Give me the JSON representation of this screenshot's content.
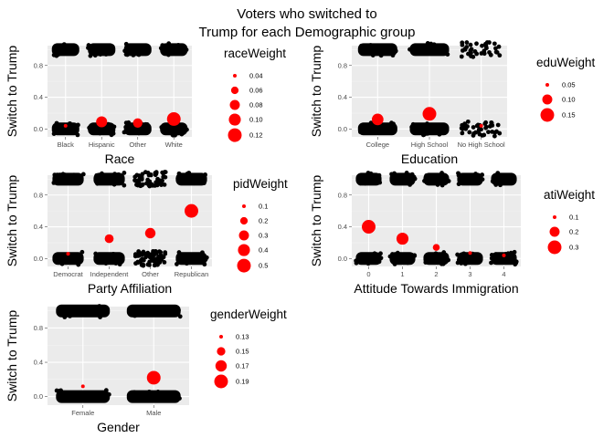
{
  "title_lines": [
    "Voters who switched to",
    "Trump for each Demographic group"
  ],
  "colors": {
    "points": "#000000",
    "weight": "#ff0000",
    "panel": "#ebebeb",
    "grid": "#ffffff"
  },
  "chart_data": [
    {
      "type": "scatter",
      "xlabel": "Race",
      "ylabel": "Switch to Trump",
      "ylim": [
        -0.1,
        1.05
      ],
      "yticks": [
        "0.0",
        "0.4",
        "0.8"
      ],
      "categories": [
        "Black",
        "Hispanic",
        "Other",
        "White"
      ],
      "point_density": [
        "dense",
        "dense",
        "dense",
        "dense"
      ],
      "weights": [
        0.04,
        0.09,
        0.075,
        0.125
      ],
      "legend_title": "raceWeight",
      "legend_values": [
        "0.04",
        "0.06",
        "0.08",
        "0.10",
        "0.12"
      ],
      "size_range": [
        0.04,
        0.12
      ]
    },
    {
      "type": "scatter",
      "xlabel": "Education",
      "ylabel": "Switch to Trump",
      "ylim": [
        -0.1,
        1.05
      ],
      "yticks": [
        "0.0",
        "0.4",
        "0.8"
      ],
      "categories": [
        "College",
        "High School",
        "No High School"
      ],
      "point_density": [
        "dense",
        "dense",
        "sparse"
      ],
      "weights": [
        0.12,
        0.19,
        0.04
      ],
      "legend_title": "eduWeight",
      "legend_values": [
        "0.05",
        "0.10",
        "0.15"
      ],
      "size_range": [
        0.05,
        0.15
      ]
    },
    {
      "type": "scatter",
      "xlabel": "Party Affiliation",
      "ylabel": "Switch to Trump",
      "ylim": [
        -0.1,
        1.05
      ],
      "yticks": [
        "0.0",
        "0.4",
        "0.8"
      ],
      "categories": [
        "Democrat",
        "Independent",
        "Other",
        "Republican"
      ],
      "point_density": [
        "dense",
        "dense",
        "medium",
        "dense"
      ],
      "weights": [
        0.06,
        0.25,
        0.32,
        0.6
      ],
      "legend_title": "pidWeight",
      "legend_values": [
        "0.1",
        "0.2",
        "0.3",
        "0.4",
        "0.5"
      ],
      "size_range": [
        0.1,
        0.5
      ]
    },
    {
      "type": "scatter",
      "xlabel": "Attitude Towards Immigration",
      "ylabel": "Switch to Trump",
      "ylim": [
        -0.1,
        1.05
      ],
      "yticks": [
        "0.0",
        "0.4",
        "0.8"
      ],
      "categories": [
        "0",
        "1",
        "2",
        "3",
        "4"
      ],
      "point_density": [
        "dense",
        "dense",
        "dense",
        "dense",
        "dense"
      ],
      "weights": [
        0.4,
        0.25,
        0.14,
        0.07,
        0.04
      ],
      "legend_title": "atiWeight",
      "legend_values": [
        "0.1",
        "0.2",
        "0.3"
      ],
      "size_range": [
        0.1,
        0.3
      ]
    },
    {
      "type": "scatter",
      "xlabel": "Gender",
      "ylabel": "Switch to Trump",
      "ylim": [
        -0.1,
        1.05
      ],
      "yticks": [
        "0.0",
        "0.4",
        "0.8"
      ],
      "categories": [
        "Female",
        "Male"
      ],
      "point_density": [
        "dense",
        "dense"
      ],
      "weights": [
        0.12,
        0.22
      ],
      "legend_title": "genderWeight",
      "legend_values": [
        "0.13",
        "0.15",
        "0.17",
        "0.19"
      ],
      "size_range": [
        0.13,
        0.19
      ]
    }
  ]
}
